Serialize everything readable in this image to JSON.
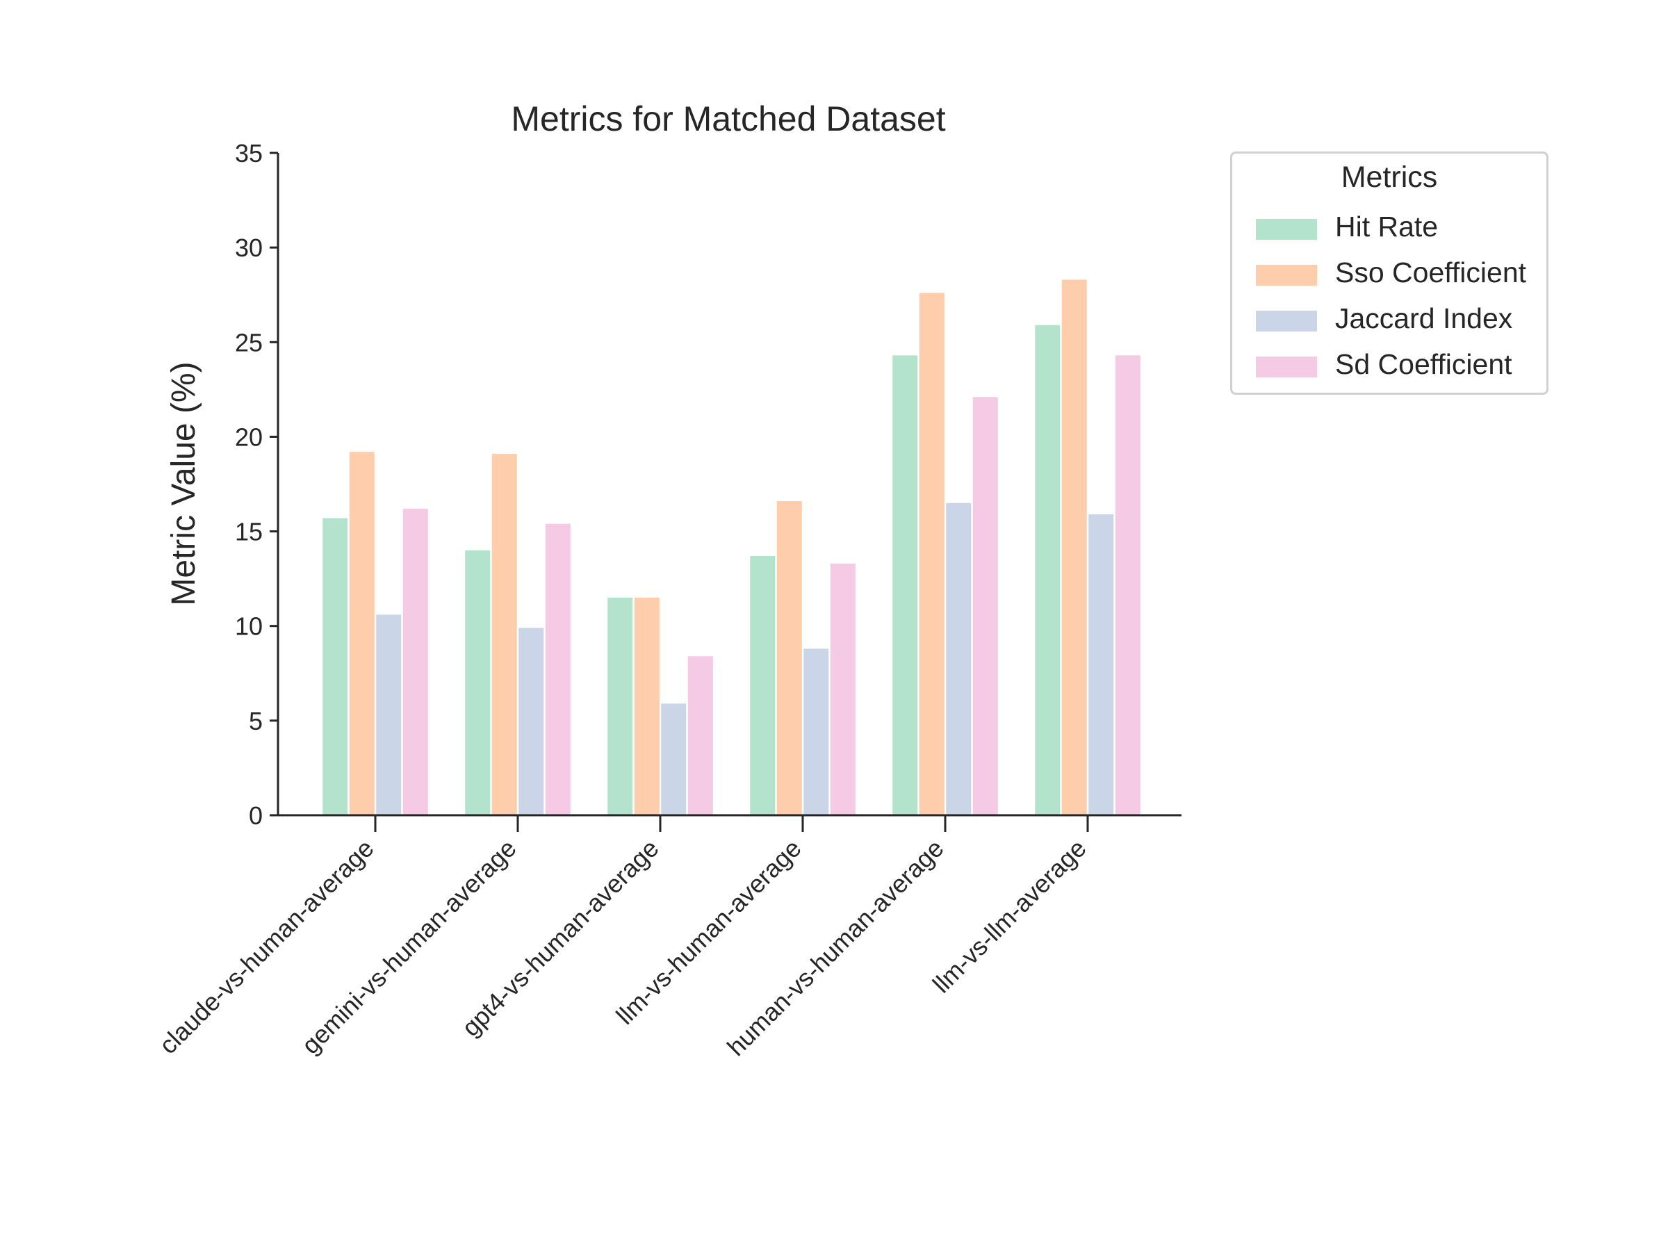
{
  "chart_data": {
    "type": "bar",
    "title": "Metrics for Matched Dataset",
    "xlabel": "",
    "ylabel": "Metric Value (%)",
    "ylim": [
      0,
      35
    ],
    "yticks": [
      "0",
      "5",
      "10",
      "15",
      "20",
      "25",
      "30",
      "35"
    ],
    "categories": [
      "claude-vs-human-average",
      "gemini-vs-human-average",
      "gpt4-vs-human-average",
      "llm-vs-human-average",
      "human-vs-human-average",
      "llm-vs-llm-average"
    ],
    "series": [
      {
        "name": "Hit Rate",
        "color": "#b3e2cd",
        "values": [
          15.7,
          14.0,
          11.5,
          13.7,
          24.3,
          25.9
        ]
      },
      {
        "name": "Sso Coefficient",
        "color": "#fdcdac",
        "values": [
          19.2,
          19.1,
          11.5,
          16.6,
          27.6,
          28.3
        ]
      },
      {
        "name": "Jaccard Index",
        "color": "#cbd5e8",
        "values": [
          10.6,
          9.9,
          5.9,
          8.8,
          16.5,
          15.9
        ]
      },
      {
        "name": "Sd Coefficient",
        "color": "#f4cae4",
        "values": [
          16.2,
          15.4,
          8.4,
          13.3,
          22.1,
          24.3
        ]
      }
    ],
    "legend": {
      "title": "Metrics",
      "placement": "outside top-right"
    },
    "grid": false
  }
}
